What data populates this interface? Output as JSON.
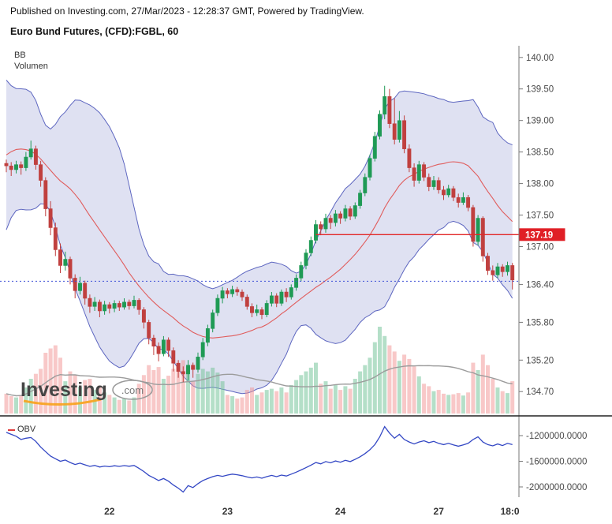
{
  "header": {
    "published": "Published on Investing.com, 27/Mar/2023 - 12:28:37 GMT, Powered by TradingView."
  },
  "title": "Euro Bund Futures, (CFD):FGBL, 60",
  "panes": {
    "bb_label": "BB",
    "volume_label": "Volumen",
    "obv_label": "OBV"
  },
  "watermark": {
    "name": "Investing",
    "suffix": ".com"
  },
  "chart_data": {
    "type": "candlestick",
    "symbol": "Euro Bund Futures (CFD):FGBL",
    "interval_minutes": 60,
    "colors": {
      "up": "#1f9a55",
      "down": "#c0403f",
      "vol_up": "rgba(119,197,154,0.55)",
      "vol_down": "rgba(242,146,146,0.5)",
      "bb_fill": "rgba(111,117,197,0.22)",
      "bb_edge": "#5d66c0",
      "bb_mid": "#e05c5c",
      "obv": "#3347c4",
      "baseline": "#3f51d6",
      "ray": "#e22727",
      "label_bg": "#e01f26",
      "axis_text": "#4a4a4a",
      "time_text": "#333333",
      "vol_ma": "#9c9c9c",
      "watermark_accent": "#f7a21b"
    },
    "price_axis": {
      "ticks": [
        "140.00",
        "139.50",
        "139.00",
        "138.50",
        "138.00",
        "137.50",
        "137.00",
        "136.40",
        "135.80",
        "135.20",
        "134.70"
      ],
      "ylim": [
        134.34,
        140.16
      ]
    },
    "time_axis": {
      "ticks": [
        {
          "label": "22",
          "index": 21
        },
        {
          "label": "23",
          "index": 45
        },
        {
          "label": "24",
          "index": 68
        },
        {
          "label": "27",
          "index": 88
        },
        {
          "label": "18:0",
          "index": 102.5
        }
      ]
    },
    "price_line": {
      "label": "137.19",
      "value": 137.19,
      "start_index": 63
    },
    "baseline": {
      "value": 136.45,
      "style": "dotted"
    },
    "bb": {
      "period": 20,
      "stddev": 2,
      "preroll_closes": [
        136.9,
        137.2,
        137.6,
        138.1,
        138.6,
        139.0,
        139.35,
        139.55,
        139.4,
        139.1,
        138.7,
        138.3,
        138.0,
        137.8,
        138.05,
        138.4,
        138.6,
        138.45,
        138.3,
        138.3
      ]
    },
    "volume": {
      "ma_period": 20,
      "scale_max": 1400
    },
    "candles": [
      [
        138.32,
        138.38,
        138.18,
        138.28,
        320
      ],
      [
        138.28,
        138.34,
        138.12,
        138.22,
        280
      ],
      [
        138.22,
        138.36,
        138.16,
        138.3,
        260
      ],
      [
        138.3,
        138.35,
        138.14,
        138.25,
        300
      ],
      [
        138.25,
        138.5,
        138.2,
        138.42,
        420
      ],
      [
        138.42,
        138.68,
        138.38,
        138.55,
        560
      ],
      [
        138.55,
        138.6,
        138.22,
        138.3,
        640
      ],
      [
        138.3,
        138.36,
        137.95,
        138.05,
        720
      ],
      [
        138.05,
        138.1,
        137.48,
        137.6,
        980
      ],
      [
        137.6,
        137.72,
        137.18,
        137.3,
        1050
      ],
      [
        137.3,
        137.38,
        136.85,
        136.95,
        1100
      ],
      [
        136.95,
        137.05,
        136.58,
        136.7,
        900
      ],
      [
        136.7,
        136.92,
        136.62,
        136.8,
        520
      ],
      [
        136.8,
        136.84,
        136.4,
        136.5,
        680
      ],
      [
        136.5,
        136.56,
        136.18,
        136.3,
        620
      ],
      [
        136.3,
        136.52,
        136.24,
        136.42,
        430
      ],
      [
        136.42,
        136.46,
        136.08,
        136.18,
        540
      ],
      [
        136.18,
        136.24,
        135.95,
        136.05,
        560
      ],
      [
        136.05,
        136.2,
        135.98,
        136.12,
        380
      ],
      [
        136.12,
        136.16,
        135.88,
        135.98,
        450
      ],
      [
        135.98,
        136.14,
        135.92,
        136.08,
        340
      ],
      [
        136.08,
        136.12,
        135.94,
        136.02,
        300
      ],
      [
        136.02,
        136.15,
        135.96,
        136.1,
        260
      ],
      [
        136.1,
        136.14,
        135.98,
        136.04,
        220
      ],
      [
        136.04,
        136.18,
        136.0,
        136.12,
        240
      ],
      [
        136.12,
        136.16,
        136.0,
        136.06,
        210
      ],
      [
        136.06,
        136.22,
        136.02,
        136.15,
        260
      ],
      [
        136.15,
        136.18,
        135.92,
        136.0,
        480
      ],
      [
        136.0,
        136.04,
        135.7,
        135.8,
        620
      ],
      [
        135.8,
        135.84,
        135.45,
        135.55,
        780
      ],
      [
        135.55,
        135.6,
        135.28,
        135.42,
        700
      ],
      [
        135.42,
        135.48,
        135.18,
        135.3,
        750
      ],
      [
        135.3,
        135.58,
        135.26,
        135.52,
        560
      ],
      [
        135.52,
        135.56,
        135.25,
        135.35,
        610
      ],
      [
        135.35,
        135.4,
        135.02,
        135.15,
        720
      ],
      [
        135.15,
        135.2,
        134.92,
        135.02,
        820
      ],
      [
        135.02,
        135.1,
        134.85,
        134.98,
        860
      ],
      [
        134.98,
        135.2,
        134.88,
        135.12,
        700
      ],
      [
        135.12,
        135.16,
        134.92,
        135.05,
        520
      ],
      [
        135.05,
        135.32,
        135.0,
        135.25,
        640
      ],
      [
        135.25,
        135.55,
        135.2,
        135.48,
        720
      ],
      [
        135.48,
        135.76,
        135.42,
        135.7,
        680
      ],
      [
        135.7,
        136.0,
        135.64,
        135.95,
        740
      ],
      [
        135.95,
        136.24,
        135.9,
        136.18,
        660
      ],
      [
        136.18,
        136.36,
        136.1,
        136.3,
        520
      ],
      [
        136.3,
        136.34,
        136.18,
        136.25,
        300
      ],
      [
        136.25,
        136.38,
        136.2,
        136.32,
        280
      ],
      [
        136.32,
        136.36,
        136.22,
        136.28,
        240
      ],
      [
        136.28,
        136.32,
        136.14,
        136.2,
        260
      ],
      [
        136.2,
        136.24,
        136.0,
        136.05,
        380
      ],
      [
        136.05,
        136.1,
        135.88,
        135.95,
        420
      ],
      [
        135.95,
        136.08,
        135.9,
        136.0,
        300
      ],
      [
        136.0,
        136.04,
        135.85,
        135.92,
        340
      ],
      [
        135.92,
        136.15,
        135.88,
        136.1,
        380
      ],
      [
        136.1,
        136.28,
        136.05,
        136.22,
        400
      ],
      [
        136.22,
        136.26,
        136.04,
        136.1,
        360
      ],
      [
        136.1,
        136.32,
        136.06,
        136.28,
        420
      ],
      [
        136.28,
        136.34,
        136.12,
        136.2,
        340
      ],
      [
        136.2,
        136.4,
        136.16,
        136.35,
        460
      ],
      [
        136.35,
        136.56,
        136.3,
        136.5,
        540
      ],
      [
        136.5,
        136.76,
        136.45,
        136.7,
        620
      ],
      [
        136.7,
        136.96,
        136.64,
        136.9,
        680
      ],
      [
        136.9,
        137.16,
        136.85,
        137.1,
        740
      ],
      [
        137.1,
        137.42,
        137.05,
        137.35,
        820
      ],
      [
        137.35,
        137.4,
        137.18,
        137.28,
        480
      ],
      [
        137.28,
        137.52,
        137.22,
        137.45,
        520
      ],
      [
        137.45,
        137.5,
        137.28,
        137.38,
        400
      ],
      [
        137.38,
        137.58,
        137.32,
        137.52,
        460
      ],
      [
        137.52,
        137.56,
        137.36,
        137.45,
        380
      ],
      [
        137.45,
        137.66,
        137.4,
        137.6,
        440
      ],
      [
        137.6,
        137.64,
        137.42,
        137.48,
        400
      ],
      [
        137.48,
        137.7,
        137.44,
        137.65,
        560
      ],
      [
        137.65,
        137.9,
        137.6,
        137.85,
        680
      ],
      [
        137.85,
        138.16,
        137.8,
        138.1,
        780
      ],
      [
        138.1,
        138.46,
        138.05,
        138.4,
        900
      ],
      [
        138.4,
        138.82,
        138.35,
        138.75,
        1150
      ],
      [
        138.75,
        139.16,
        138.7,
        139.1,
        1400
      ],
      [
        139.1,
        139.55,
        139.02,
        139.38,
        1250
      ],
      [
        139.38,
        139.5,
        138.88,
        138.95,
        1100
      ],
      [
        138.95,
        139.35,
        138.62,
        138.7,
        1000
      ],
      [
        138.7,
        139.15,
        138.65,
        139.0,
        850
      ],
      [
        139.0,
        139.08,
        138.48,
        138.55,
        950
      ],
      [
        138.55,
        138.62,
        138.18,
        138.25,
        880
      ],
      [
        138.25,
        138.32,
        137.95,
        138.05,
        760
      ],
      [
        138.05,
        138.36,
        138.0,
        138.3,
        600
      ],
      [
        138.3,
        138.34,
        138.04,
        138.1,
        480
      ],
      [
        138.1,
        138.16,
        137.88,
        137.95,
        440
      ],
      [
        137.95,
        138.12,
        137.9,
        138.05,
        360
      ],
      [
        138.05,
        138.1,
        137.84,
        137.9,
        380
      ],
      [
        137.9,
        137.96,
        137.74,
        137.82,
        320
      ],
      [
        137.82,
        137.98,
        137.78,
        137.92,
        300
      ],
      [
        137.92,
        137.96,
        137.72,
        137.78,
        310
      ],
      [
        137.78,
        137.84,
        137.62,
        137.7,
        330
      ],
      [
        137.7,
        137.86,
        137.66,
        137.78,
        290
      ],
      [
        137.78,
        137.82,
        137.56,
        137.62,
        340
      ],
      [
        137.62,
        137.66,
        137.0,
        137.08,
        820
      ],
      [
        137.08,
        137.5,
        137.02,
        137.45,
        700
      ],
      [
        137.45,
        137.48,
        136.76,
        136.85,
        950
      ],
      [
        136.85,
        136.9,
        136.55,
        136.62,
        780
      ],
      [
        136.62,
        136.7,
        136.46,
        136.55,
        560
      ],
      [
        136.55,
        136.74,
        136.5,
        136.68,
        420
      ],
      [
        136.68,
        136.72,
        136.52,
        136.6,
        360
      ],
      [
        136.6,
        136.76,
        136.54,
        136.7,
        330
      ],
      [
        136.7,
        136.74,
        136.32,
        136.47,
        520
      ]
    ],
    "obv": {
      "ylim": [
        -2160000,
        -1003000
      ],
      "axis_ticks": [
        {
          "label": "-1200000.0000",
          "value": -1200000
        },
        {
          "label": "-1600000.0000",
          "value": -1600000
        },
        {
          "label": "-2000000.0000",
          "value": -2000000
        }
      ],
      "values": [
        -1150000,
        -1180000,
        -1210000,
        -1260000,
        -1240000,
        -1230000,
        -1290000,
        -1380000,
        -1450000,
        -1520000,
        -1560000,
        -1600000,
        -1580000,
        -1620000,
        -1650000,
        -1630000,
        -1655000,
        -1680000,
        -1665000,
        -1690000,
        -1675000,
        -1685000,
        -1670000,
        -1680000,
        -1668000,
        -1678000,
        -1665000,
        -1710000,
        -1760000,
        -1820000,
        -1860000,
        -1900000,
        -1870000,
        -1910000,
        -1970000,
        -2020000,
        -2080000,
        -1980000,
        -2010000,
        -1950000,
        -1900000,
        -1870000,
        -1840000,
        -1820000,
        -1835000,
        -1815000,
        -1800000,
        -1810000,
        -1825000,
        -1845000,
        -1860000,
        -1845000,
        -1865000,
        -1840000,
        -1820000,
        -1840000,
        -1815000,
        -1830000,
        -1800000,
        -1770000,
        -1735000,
        -1700000,
        -1660000,
        -1620000,
        -1640000,
        -1605000,
        -1625000,
        -1595000,
        -1615000,
        -1585000,
        -1605000,
        -1570000,
        -1530000,
        -1480000,
        -1420000,
        -1340000,
        -1220000,
        -1060000,
        -1160000,
        -1240000,
        -1180000,
        -1260000,
        -1300000,
        -1330000,
        -1300000,
        -1280000,
        -1310000,
        -1290000,
        -1320000,
        -1340000,
        -1320000,
        -1345000,
        -1365000,
        -1345000,
        -1320000,
        -1260000,
        -1220000,
        -1300000,
        -1340000,
        -1360000,
        -1330000,
        -1355000,
        -1320000,
        -1340000
      ]
    }
  }
}
